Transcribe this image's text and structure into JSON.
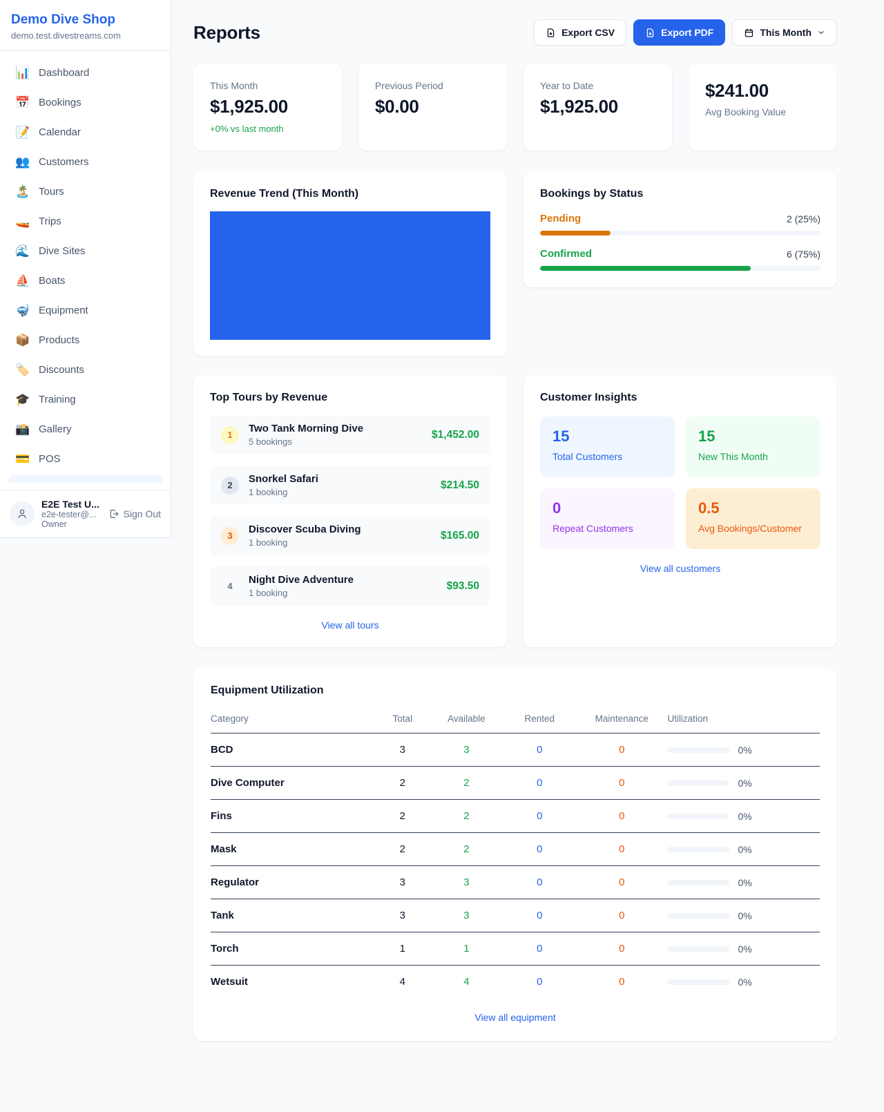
{
  "colors": {
    "brand_blue": "#2563eb",
    "green": "#16a34a",
    "amber": "#d97706",
    "orange": "#ea580c",
    "purple": "#9333ea"
  },
  "sidebar": {
    "shop_name": "Demo Dive Shop",
    "shop_domain": "demo.test.divestreams.com",
    "items": [
      {
        "label": "Dashboard",
        "icon": "📊"
      },
      {
        "label": "Bookings",
        "icon": "📅"
      },
      {
        "label": "Calendar",
        "icon": "📝"
      },
      {
        "label": "Customers",
        "icon": "👥"
      },
      {
        "label": "Tours",
        "icon": "🏝️"
      },
      {
        "label": "Trips",
        "icon": "🚤"
      },
      {
        "label": "Dive Sites",
        "icon": "🌊"
      },
      {
        "label": "Boats",
        "icon": "⛵"
      },
      {
        "label": "Equipment",
        "icon": "🤿"
      },
      {
        "label": "Products",
        "icon": "📦"
      },
      {
        "label": "Discounts",
        "icon": "🏷️"
      },
      {
        "label": "Training",
        "icon": "🎓"
      },
      {
        "label": "Gallery",
        "icon": "📸"
      },
      {
        "label": "POS",
        "icon": "💳"
      }
    ],
    "user": {
      "name": "E2E Test U...",
      "email": "e2e-tester@...",
      "role": "Owner",
      "sign_out_label": "Sign Out"
    }
  },
  "header": {
    "title": "Reports",
    "export_csv_label": "Export CSV",
    "export_pdf_label": "Export PDF",
    "period_label": "This Month"
  },
  "stats": [
    {
      "label": "This Month",
      "value": "$1,925.00",
      "note": "+0% vs last month"
    },
    {
      "label": "Previous Period",
      "value": "$0.00"
    },
    {
      "label": "Year to Date",
      "value": "$1,925.00"
    },
    {
      "label": "Avg Booking Value",
      "value": "$241.00"
    }
  ],
  "revenue_trend": {
    "title": "Revenue Trend (This Month)"
  },
  "bookings_by_status": {
    "title": "Bookings by Status",
    "rows": [
      {
        "label": "Pending",
        "display": "2 (25%)",
        "count": 2,
        "pct": 25
      },
      {
        "label": "Confirmed",
        "display": "6 (75%)",
        "count": 6,
        "pct": 75
      }
    ]
  },
  "top_tours": {
    "title": "Top Tours by Revenue",
    "rows": [
      {
        "rank": "1",
        "name": "Two Tank Morning Dive",
        "bookings": "5 bookings",
        "revenue": "$1,452.00"
      },
      {
        "rank": "2",
        "name": "Snorkel Safari",
        "bookings": "1 booking",
        "revenue": "$214.50"
      },
      {
        "rank": "3",
        "name": "Discover Scuba Diving",
        "bookings": "1 booking",
        "revenue": "$165.00"
      },
      {
        "rank": "4",
        "name": "Night Dive Adventure",
        "bookings": "1 booking",
        "revenue": "$93.50"
      }
    ],
    "link": "View all tours"
  },
  "customer_insights": {
    "title": "Customer Insights",
    "tiles": [
      {
        "value": "15",
        "label": "Total Customers"
      },
      {
        "value": "15",
        "label": "New This Month"
      },
      {
        "value": "0",
        "label": "Repeat Customers"
      },
      {
        "value": "0.5",
        "label": "Avg Bookings/Customer"
      }
    ],
    "link": "View all customers"
  },
  "equipment": {
    "title": "Equipment Utilization",
    "columns": [
      "Category",
      "Total",
      "Available",
      "Rented",
      "Maintenance",
      "Utilization"
    ],
    "rows": [
      {
        "category": "BCD",
        "total": "3",
        "available": "3",
        "rented": "0",
        "maintenance": "0",
        "utilization": "0%",
        "pct": 0
      },
      {
        "category": "Dive Computer",
        "total": "2",
        "available": "2",
        "rented": "0",
        "maintenance": "0",
        "utilization": "0%",
        "pct": 0
      },
      {
        "category": "Fins",
        "total": "2",
        "available": "2",
        "rented": "0",
        "maintenance": "0",
        "utilization": "0%",
        "pct": 0
      },
      {
        "category": "Mask",
        "total": "2",
        "available": "2",
        "rented": "0",
        "maintenance": "0",
        "utilization": "0%",
        "pct": 0
      },
      {
        "category": "Regulator",
        "total": "3",
        "available": "3",
        "rented": "0",
        "maintenance": "0",
        "utilization": "0%",
        "pct": 0
      },
      {
        "category": "Tank",
        "total": "3",
        "available": "3",
        "rented": "0",
        "maintenance": "0",
        "utilization": "0%",
        "pct": 0
      },
      {
        "category": "Torch",
        "total": "1",
        "available": "1",
        "rented": "0",
        "maintenance": "0",
        "utilization": "0%",
        "pct": 0
      },
      {
        "category": "Wetsuit",
        "total": "4",
        "available": "4",
        "rented": "0",
        "maintenance": "0",
        "utilization": "0%",
        "pct": 0
      }
    ],
    "link": "View all equipment"
  }
}
